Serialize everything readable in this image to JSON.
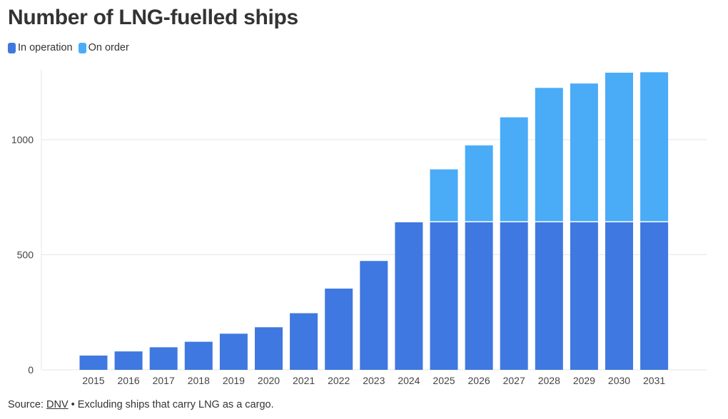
{
  "title": "Number of LNG-fuelled ships",
  "legend": {
    "in_operation": "In operation",
    "on_order": "On order"
  },
  "colors": {
    "in_operation": "#3F78E0",
    "on_order": "#4AABF7",
    "grid": "#e6e6e6"
  },
  "source": {
    "prefix": "Source:",
    "link": "DNV",
    "note": " • Excluding ships that carry LNG as a cargo."
  },
  "chart_data": {
    "type": "bar",
    "stacked": true,
    "title": "Number of LNG-fuelled ships",
    "xlabel": "",
    "ylabel": "",
    "ylim": [
      0,
      1300
    ],
    "yticks": [
      0,
      500,
      1000
    ],
    "grid": true,
    "legend_position": "top-left",
    "categories": [
      "2015",
      "2016",
      "2017",
      "2018",
      "2019",
      "2020",
      "2021",
      "2022",
      "2023",
      "2024",
      "2025",
      "2026",
      "2027",
      "2028",
      "2029",
      "2030",
      "2031"
    ],
    "series": [
      {
        "name": "In operation",
        "values": [
          62,
          80,
          98,
          122,
          157,
          185,
          246,
          353,
          473,
          641,
          641,
          641,
          641,
          641,
          641,
          641,
          641
        ]
      },
      {
        "name": "On order",
        "values": [
          0,
          0,
          0,
          0,
          0,
          0,
          0,
          0,
          0,
          0,
          230,
          334,
          456,
          584,
          603,
          650,
          652
        ]
      }
    ]
  }
}
